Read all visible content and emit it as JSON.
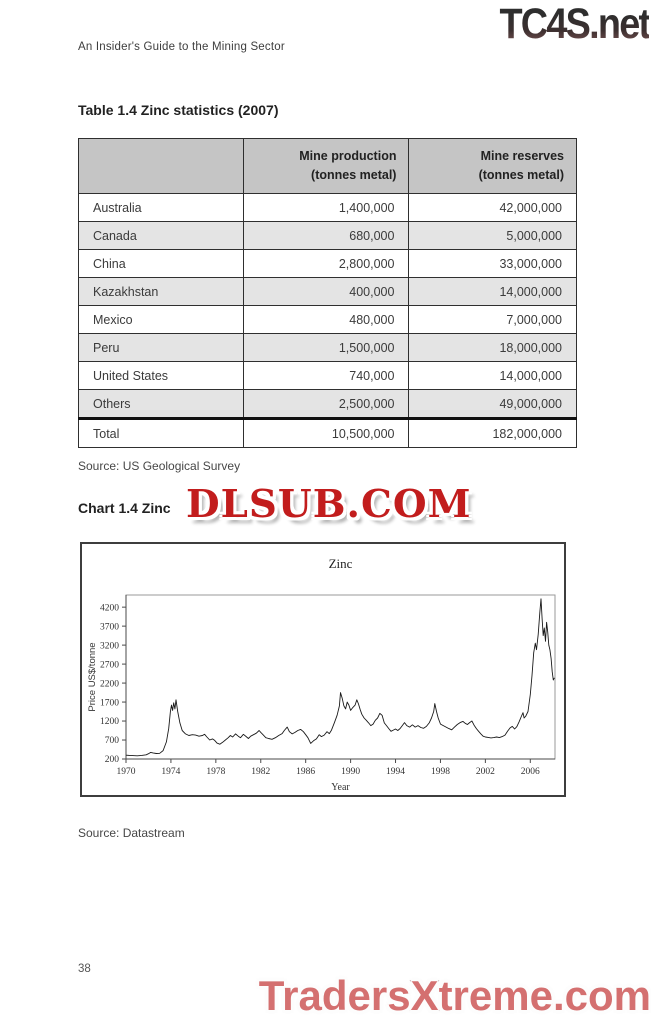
{
  "header": {
    "book_title": "An Insider's Guide to the Mining Sector",
    "site_watermark": "TC4S.net"
  },
  "table_section": {
    "title": "Table 1.4 Zinc statistics (2007)",
    "col_production": {
      "line1": "Mine production",
      "line2": "(tonnes metal)"
    },
    "col_reserves": {
      "line1": "Mine reserves",
      "line2": "(tonnes metal)"
    },
    "rows": [
      {
        "country": "Australia",
        "production": "1,400,000",
        "reserves": "42,000,000"
      },
      {
        "country": "Canada",
        "production": "680,000",
        "reserves": "5,000,000"
      },
      {
        "country": "China",
        "production": "2,800,000",
        "reserves": "33,000,000"
      },
      {
        "country": "Kazakhstan",
        "production": "400,000",
        "reserves": "14,000,000"
      },
      {
        "country": "Mexico",
        "production": "480,000",
        "reserves": "7,000,000"
      },
      {
        "country": "Peru",
        "production": "1,500,000",
        "reserves": "18,000,000"
      },
      {
        "country": "United States",
        "production": "740,000",
        "reserves": "14,000,000"
      },
      {
        "country": "Others",
        "production": "2,500,000",
        "reserves": "49,000,000"
      }
    ],
    "total": {
      "label": "Total",
      "production": "10,500,000",
      "reserves": "182,000,000"
    },
    "source": "Source: US Geological Survey"
  },
  "chart_section": {
    "heading": "Chart 1.4 Zinc",
    "watermark": "DLSUB.COM",
    "source": "Source: Datastream"
  },
  "chart_data": {
    "type": "line",
    "title": "Zinc",
    "xlabel": "Year",
    "ylabel": "Price US$/tonne",
    "xlim": [
      1970,
      2008.2
    ],
    "ylim": [
      200,
      4520
    ],
    "x_ticks": [
      1970,
      1974,
      1978,
      1982,
      1986,
      1990,
      1994,
      1998,
      2002,
      2006
    ],
    "y_ticks": [
      200,
      700,
      1200,
      1700,
      2200,
      2700,
      3200,
      3700,
      4200
    ],
    "grid": false,
    "legend": "none",
    "series": [
      {
        "name": "Zinc price US$/tonne",
        "points": [
          [
            1970.0,
            300
          ],
          [
            1970.3,
            295
          ],
          [
            1970.6,
            290
          ],
          [
            1971.0,
            285
          ],
          [
            1971.4,
            295
          ],
          [
            1971.8,
            310
          ],
          [
            1972.0,
            340
          ],
          [
            1972.2,
            375
          ],
          [
            1972.4,
            360
          ],
          [
            1972.7,
            345
          ],
          [
            1973.0,
            350
          ],
          [
            1973.3,
            420
          ],
          [
            1973.6,
            650
          ],
          [
            1973.8,
            1000
          ],
          [
            1973.95,
            1450
          ],
          [
            1974.05,
            1620
          ],
          [
            1974.15,
            1480
          ],
          [
            1974.25,
            1680
          ],
          [
            1974.35,
            1520
          ],
          [
            1974.45,
            1760
          ],
          [
            1974.6,
            1450
          ],
          [
            1974.8,
            1150
          ],
          [
            1975.0,
            950
          ],
          [
            1975.3,
            860
          ],
          [
            1975.6,
            820
          ],
          [
            1975.9,
            840
          ],
          [
            1976.2,
            830
          ],
          [
            1976.5,
            800
          ],
          [
            1976.8,
            820
          ],
          [
            1977.0,
            850
          ],
          [
            1977.2,
            780
          ],
          [
            1977.45,
            700
          ],
          [
            1977.7,
            730
          ],
          [
            1977.9,
            690
          ],
          [
            1978.1,
            620
          ],
          [
            1978.35,
            590
          ],
          [
            1978.6,
            640
          ],
          [
            1978.85,
            700
          ],
          [
            1979.1,
            760
          ],
          [
            1979.3,
            820
          ],
          [
            1979.5,
            780
          ],
          [
            1979.75,
            860
          ],
          [
            1980.0,
            800
          ],
          [
            1980.2,
            760
          ],
          [
            1980.45,
            850
          ],
          [
            1980.7,
            790
          ],
          [
            1980.9,
            740
          ],
          [
            1981.1,
            800
          ],
          [
            1981.35,
            840
          ],
          [
            1981.6,
            880
          ],
          [
            1981.85,
            950
          ],
          [
            1982.0,
            900
          ],
          [
            1982.2,
            840
          ],
          [
            1982.45,
            760
          ],
          [
            1982.7,
            740
          ],
          [
            1983.0,
            720
          ],
          [
            1983.3,
            760
          ],
          [
            1983.6,
            820
          ],
          [
            1983.9,
            870
          ],
          [
            1984.1,
            950
          ],
          [
            1984.35,
            1040
          ],
          [
            1984.55,
            920
          ],
          [
            1984.8,
            860
          ],
          [
            1985.05,
            900
          ],
          [
            1985.3,
            950
          ],
          [
            1985.55,
            980
          ],
          [
            1985.8,
            920
          ],
          [
            1986.0,
            840
          ],
          [
            1986.2,
            760
          ],
          [
            1986.45,
            610
          ],
          [
            1986.7,
            680
          ],
          [
            1986.95,
            730
          ],
          [
            1987.2,
            840
          ],
          [
            1987.4,
            790
          ],
          [
            1987.65,
            830
          ],
          [
            1987.9,
            920
          ],
          [
            1988.1,
            870
          ],
          [
            1988.3,
            960
          ],
          [
            1988.55,
            1150
          ],
          [
            1988.8,
            1350
          ],
          [
            1989.0,
            1600
          ],
          [
            1989.1,
            1950
          ],
          [
            1989.25,
            1800
          ],
          [
            1989.4,
            1600
          ],
          [
            1989.55,
            1520
          ],
          [
            1989.7,
            1700
          ],
          [
            1989.85,
            1620
          ],
          [
            1990.0,
            1480
          ],
          [
            1990.2,
            1560
          ],
          [
            1990.4,
            1620
          ],
          [
            1990.55,
            1760
          ],
          [
            1990.7,
            1650
          ],
          [
            1990.85,
            1500
          ],
          [
            1991.0,
            1380
          ],
          [
            1991.2,
            1280
          ],
          [
            1991.4,
            1220
          ],
          [
            1991.6,
            1150
          ],
          [
            1991.8,
            1080
          ],
          [
            1992.0,
            1120
          ],
          [
            1992.2,
            1220
          ],
          [
            1992.4,
            1280
          ],
          [
            1992.6,
            1400
          ],
          [
            1992.8,
            1350
          ],
          [
            1993.0,
            1150
          ],
          [
            1993.2,
            1080
          ],
          [
            1993.4,
            1000
          ],
          [
            1993.6,
            930
          ],
          [
            1993.8,
            960
          ],
          [
            1994.0,
            990
          ],
          [
            1994.2,
            950
          ],
          [
            1994.4,
            1000
          ],
          [
            1994.6,
            1080
          ],
          [
            1994.8,
            1160
          ],
          [
            1995.0,
            1080
          ],
          [
            1995.25,
            1040
          ],
          [
            1995.5,
            1100
          ],
          [
            1995.75,
            1040
          ],
          [
            1996.0,
            1080
          ],
          [
            1996.25,
            1030
          ],
          [
            1996.5,
            1010
          ],
          [
            1996.75,
            1060
          ],
          [
            1997.0,
            1150
          ],
          [
            1997.2,
            1280
          ],
          [
            1997.4,
            1450
          ],
          [
            1997.5,
            1660
          ],
          [
            1997.65,
            1450
          ],
          [
            1997.8,
            1280
          ],
          [
            1998.0,
            1120
          ],
          [
            1998.25,
            1080
          ],
          [
            1998.5,
            1040
          ],
          [
            1998.75,
            1000
          ],
          [
            1999.0,
            970
          ],
          [
            1999.25,
            1040
          ],
          [
            1999.5,
            1110
          ],
          [
            1999.75,
            1160
          ],
          [
            2000.0,
            1190
          ],
          [
            2000.2,
            1140
          ],
          [
            2000.4,
            1110
          ],
          [
            2000.6,
            1160
          ],
          [
            2000.8,
            1200
          ],
          [
            2001.0,
            1090
          ],
          [
            2001.2,
            1000
          ],
          [
            2001.4,
            930
          ],
          [
            2001.6,
            860
          ],
          [
            2001.8,
            800
          ],
          [
            2002.0,
            780
          ],
          [
            2002.25,
            770
          ],
          [
            2002.5,
            755
          ],
          [
            2002.75,
            765
          ],
          [
            2003.0,
            780
          ],
          [
            2003.25,
            765
          ],
          [
            2003.5,
            790
          ],
          [
            2003.75,
            830
          ],
          [
            2004.0,
            940
          ],
          [
            2004.2,
            1020
          ],
          [
            2004.4,
            1060
          ],
          [
            2004.6,
            990
          ],
          [
            2004.8,
            1050
          ],
          [
            2005.0,
            1180
          ],
          [
            2005.2,
            1320
          ],
          [
            2005.35,
            1420
          ],
          [
            2005.45,
            1280
          ],
          [
            2005.6,
            1330
          ],
          [
            2005.8,
            1450
          ],
          [
            2006.0,
            1900
          ],
          [
            2006.15,
            2400
          ],
          [
            2006.3,
            3000
          ],
          [
            2006.45,
            3250
          ],
          [
            2006.55,
            3080
          ],
          [
            2006.7,
            3480
          ],
          [
            2006.85,
            4050
          ],
          [
            2006.95,
            4420
          ],
          [
            2007.05,
            3900
          ],
          [
            2007.15,
            3450
          ],
          [
            2007.25,
            3650
          ],
          [
            2007.35,
            3300
          ],
          [
            2007.45,
            3800
          ],
          [
            2007.55,
            3550
          ],
          [
            2007.65,
            3200
          ],
          [
            2007.75,
            3080
          ],
          [
            2007.85,
            2850
          ],
          [
            2007.95,
            2500
          ],
          [
            2008.05,
            2280
          ],
          [
            2008.15,
            2340
          ]
        ]
      }
    ]
  },
  "footer": {
    "page_number": "38",
    "site_watermark": "TradersXtreme.com"
  },
  "colors": {
    "table_header_bg": "#c5c5c5",
    "table_shade_bg": "#e4e4e4",
    "dlsub_red": "#c21d1d",
    "traders_pink": "#d47070",
    "traders_outline": "#4e1616",
    "line_color": "#1a1a1a"
  }
}
